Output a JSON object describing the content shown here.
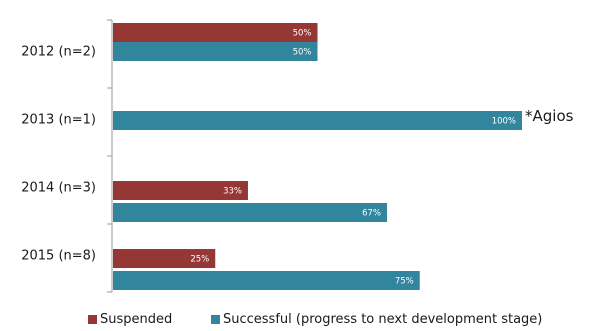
{
  "chart_data": {
    "type": "bar",
    "orientation": "horizontal",
    "categories": [
      "2012 (n=2)",
      "2013 (n=1)",
      "2014 (n=3)",
      "2015 (n=8)"
    ],
    "series": [
      {
        "name": "Suspended",
        "color": "#953735",
        "values": [
          50,
          null,
          33,
          25
        ],
        "labels": [
          "50%",
          "",
          "33%",
          "25%"
        ]
      },
      {
        "name": "Successful (progress to next development stage)",
        "color": "#31859c",
        "values": [
          50,
          100,
          67,
          75
        ],
        "labels": [
          "50%",
          "100%",
          "67%",
          "75%"
        ]
      }
    ],
    "xlim": [
      0,
      100
    ],
    "grid": false,
    "legend": "bottom",
    "annotations": [
      {
        "text": "*Agios",
        "category": "2013 (n=1)",
        "series": "Successful (progress to next development stage)"
      }
    ]
  }
}
